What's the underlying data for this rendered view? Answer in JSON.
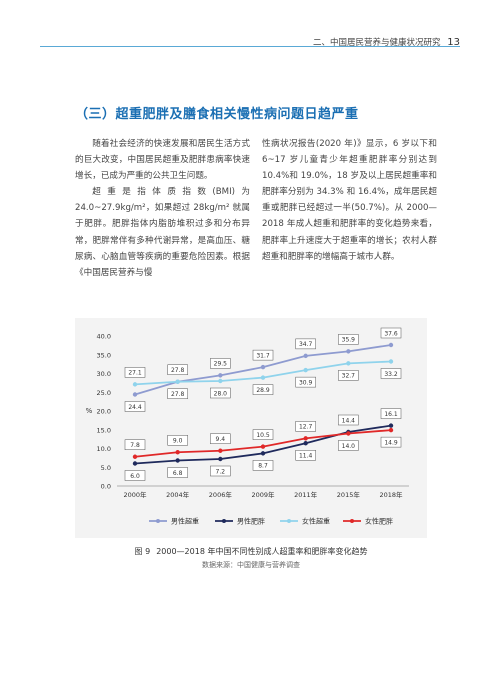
{
  "header": {
    "section": "二、中国居民营养与健康状况研究",
    "page_number": "13"
  },
  "section_title": "（三）超重肥胖及膳食相关慢性病问题日趋严重",
  "left_paragraphs": [
    "随着社会经济的快速发展和居民生活方式的巨大改变，中国居民超重及肥胖患病率快速增长，已成为严重的公共卫生问题。",
    "超重是指体质指数(BMI)为 24.0~27.9kg/m²，如果超过 28kg/m² 就属于肥胖。肥胖指体内脂肪堆积过多和分布异常，肥胖常伴有多种代谢异常，是高血压、糖尿病、心脑血管等疾病的重要危险因素。根据《中国居民营养与慢"
  ],
  "right_paragraph": "性病状况报告(2020 年)》显示，6 岁以下和 6~17 岁儿童青少年超重肥胖率分别达到 10.4%和 19.0%，18 岁及以上居民超重率和肥胖率分别为 34.3% 和 16.4%，成年居民超重或肥胖已经超过一半(50.7%)。从 2000—2018 年成人超重和肥胖率的变化趋势来看，肥胖率上升速度大于超重率的增长；农村人群超重和肥胖率的增幅高于城市人群。",
  "caption": {
    "figure_label": "图 9",
    "title": "2000—2018 年中国不同性别成人超重率和肥胖率变化趋势",
    "source": "数据来源：中国健康与营养调查"
  },
  "colors": {
    "accent": "#1b6fb3",
    "rule": "#5aa9d6",
    "male_overweight": "#8e9bd0",
    "male_obese": "#1f2a5c",
    "female_overweight": "#8fd3ec",
    "female_obese": "#e02828"
  },
  "chart_data": {
    "type": "line",
    "categories": [
      "2000年",
      "2004年",
      "2006年",
      "2009年",
      "2011年",
      "2015年",
      "2018年"
    ],
    "ylabel": "%",
    "ylim": [
      0,
      40
    ],
    "yticks": [
      0.0,
      5.0,
      10.0,
      15.0,
      20.0,
      25.0,
      30.0,
      35.0,
      40.0
    ],
    "grid": false,
    "legend_placement": "bottom",
    "series": [
      {
        "name": "男性超重",
        "color": "#8e9bd0",
        "values": [
          24.4,
          27.8,
          29.5,
          31.7,
          34.7,
          35.9,
          37.6
        ]
      },
      {
        "name": "男性肥胖",
        "color": "#1f2a5c",
        "values": [
          6.0,
          6.8,
          7.2,
          8.7,
          11.4,
          14.4,
          16.1
        ]
      },
      {
        "name": "女性超重",
        "color": "#8fd3ec",
        "values": [
          27.1,
          27.8,
          28.0,
          28.9,
          30.9,
          32.7,
          33.2
        ]
      },
      {
        "name": "女性肥胖",
        "color": "#e02828",
        "values": [
          7.8,
          9.0,
          9.4,
          10.5,
          12.7,
          14.0,
          14.9
        ]
      }
    ]
  }
}
